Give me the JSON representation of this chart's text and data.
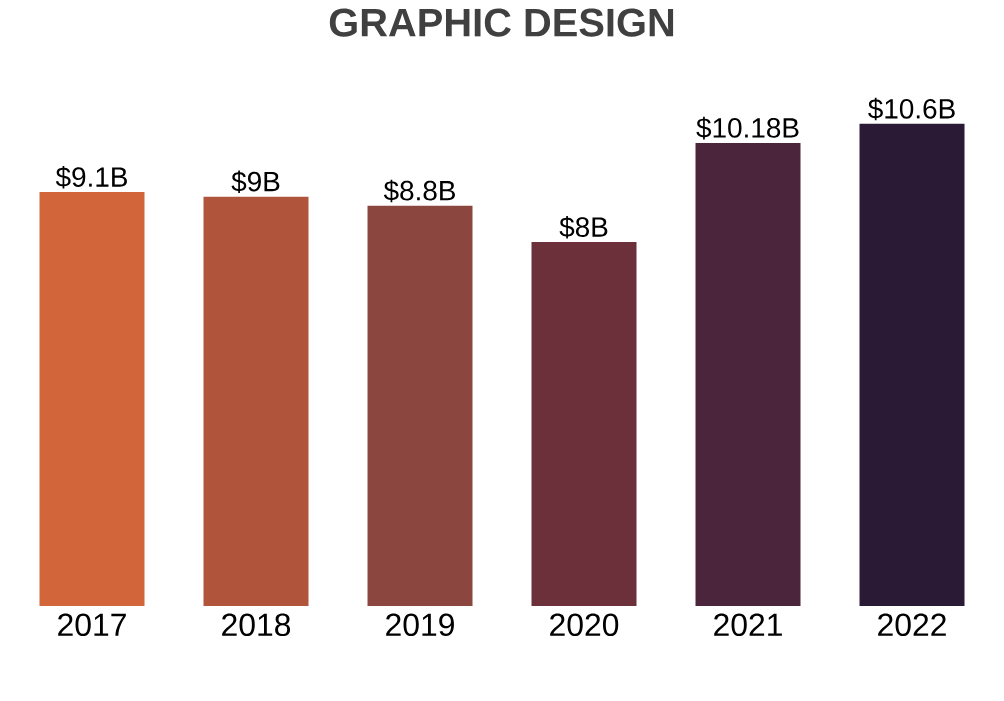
{
  "chart_data": {
    "type": "bar",
    "title": "GRAPHIC DESIGN",
    "categories": [
      "2017",
      "2018",
      "2019",
      "2020",
      "2021",
      "2022"
    ],
    "values": [
      9.1,
      9,
      8.8,
      8,
      10.18,
      10.6
    ],
    "value_labels": [
      "$9.1B",
      "$9B",
      "$8.8B",
      "$8B",
      "$10.18B",
      "$10.6B"
    ],
    "colors": [
      "#d2663a",
      "#b0553b",
      "#8b473f",
      "#6c303a",
      "#4a253b",
      "#2a1a35"
    ]
  }
}
